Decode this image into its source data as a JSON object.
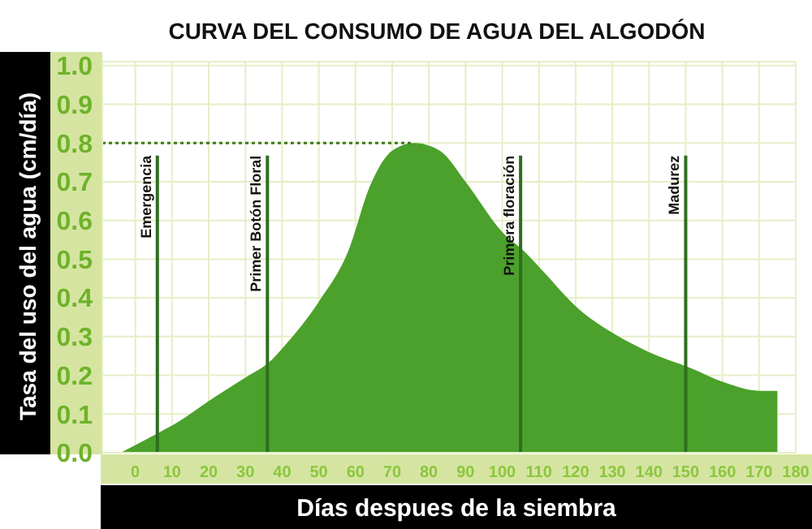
{
  "chart_data": {
    "type": "area",
    "title": "CURVA DEL CONSUMO DE AGUA DEL ALGODÓN",
    "xlabel": "Días despues de la siembra",
    "ylabel": "Tasa del uso del agua (cm/día)",
    "x": [
      -4,
      6,
      10,
      21,
      31,
      36,
      41,
      50,
      58,
      64,
      70,
      76,
      83,
      90,
      100,
      106,
      111,
      121,
      130,
      140,
      151,
      161,
      170,
      175
    ],
    "series": [
      {
        "color": "#4ba12b",
        "values": [
          0,
          0.05,
          0.07,
          0.14,
          0.2,
          0.23,
          0.28,
          0.39,
          0.52,
          0.69,
          0.78,
          0.8,
          0.78,
          0.7,
          0.57,
          0.52,
          0.47,
          0.37,
          0.31,
          0.26,
          0.22,
          0.18,
          0.16,
          0.16
        ]
      }
    ],
    "xlim": [
      -9,
      180
    ],
    "xticks": [
      0,
      10,
      20,
      30,
      40,
      50,
      60,
      70,
      80,
      90,
      100,
      110,
      120,
      130,
      140,
      150,
      160,
      170,
      180
    ],
    "ylim": [
      0,
      1.01
    ],
    "yticks": [
      {
        "value": 0,
        "label": "0.0"
      },
      {
        "value": 0.1,
        "label": "0.1"
      },
      {
        "value": 0.2,
        "label": "0.2"
      },
      {
        "value": 0.3,
        "label": "0.3"
      },
      {
        "value": 0.4,
        "label": "0.4"
      },
      {
        "value": 0.5,
        "label": "0.5"
      },
      {
        "value": 0.6,
        "label": "0.6"
      },
      {
        "value": 0.7,
        "label": "0.7"
      },
      {
        "value": 0.8,
        "label": "0.8"
      },
      {
        "value": 0.9,
        "label": "0.9"
      },
      {
        "value": 1,
        "label": "1.0"
      }
    ],
    "grid": true,
    "legend": false,
    "ref_lines": [
      {
        "axis": "x",
        "value": 6,
        "label": "Emergencia",
        "color": "#2f6e1e"
      },
      {
        "axis": "x",
        "value": 36,
        "label": "Primer Botón Floral",
        "color": "#2f6e1e"
      },
      {
        "axis": "x",
        "value": 105,
        "label": "Primera floración",
        "color": "#2f6e1e"
      },
      {
        "axis": "x",
        "value": 150,
        "label": "Madurez",
        "color": "#2f6e1e"
      },
      {
        "axis": "y",
        "value": 0.8,
        "color": "#3b7a20",
        "line_style": "dotted"
      }
    ]
  }
}
